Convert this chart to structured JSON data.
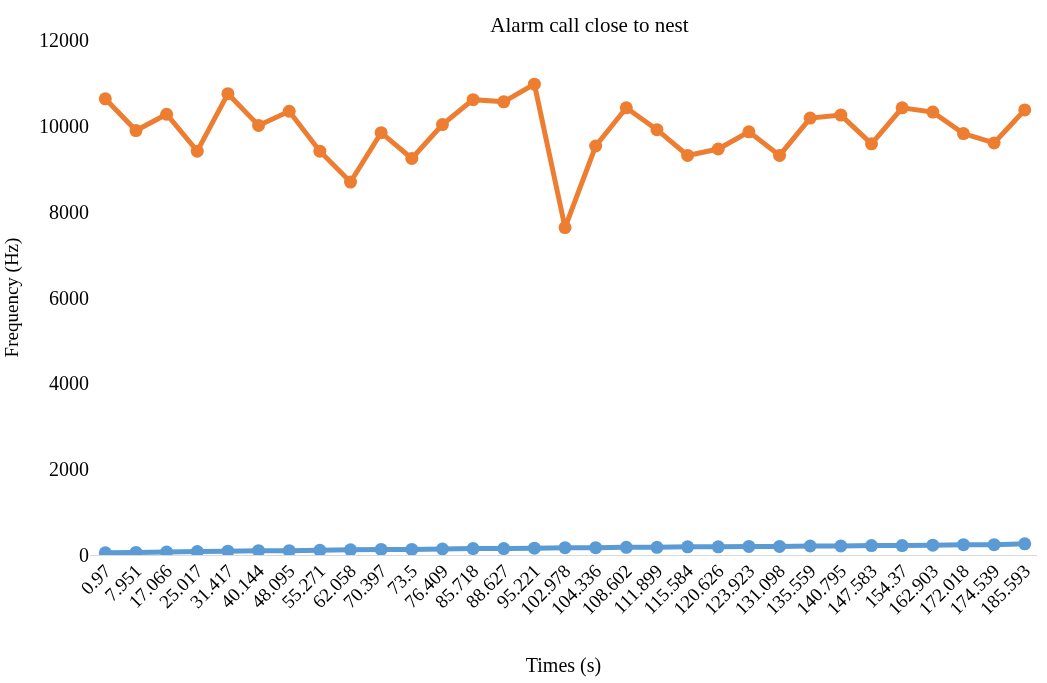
{
  "chart_data": {
    "type": "line",
    "title": "Alarm call close to nest",
    "xlabel": "Times (s)",
    "ylabel": "Frequency (Hz)",
    "categories": [
      "0.97",
      "7.951",
      "17.066",
      "25.017",
      "31.417",
      "40.144",
      "48.095",
      "55.271",
      "62.058",
      "70.397",
      "73.5",
      "76.409",
      "85.718",
      "88.627",
      "95.221",
      "102.978",
      "104.336",
      "108.602",
      "111.899",
      "115.584",
      "120.626",
      "123.923",
      "131.098",
      "135.559",
      "140.795",
      "147.583",
      "154.37",
      "162.903",
      "172.018",
      "174.539",
      "185.593"
    ],
    "series": [
      {
        "color": "#5b9bd5",
        "values": [
          50,
          60,
          70,
          80,
          90,
          100,
          100,
          110,
          120,
          130,
          130,
          140,
          150,
          150,
          160,
          170,
          170,
          180,
          180,
          190,
          190,
          200,
          200,
          210,
          210,
          220,
          220,
          230,
          240,
          240,
          260
        ]
      },
      {
        "color": "#ed7d31",
        "values": [
          10630,
          9890,
          10270,
          9410,
          10750,
          10010,
          10340,
          9410,
          8690,
          9840,
          9240,
          10030,
          10610,
          10560,
          10970,
          7630,
          9530,
          10420,
          9910,
          9310,
          9460,
          9860,
          9310,
          10180,
          10250,
          9580,
          10420,
          10320,
          9820,
          9600,
          10370
        ]
      }
    ],
    "ylim": [
      0,
      12000
    ],
    "yticks": [
      0,
      2000,
      4000,
      6000,
      8000,
      10000,
      12000
    ],
    "grid": false,
    "marker": "circle",
    "line_style": "solid"
  }
}
